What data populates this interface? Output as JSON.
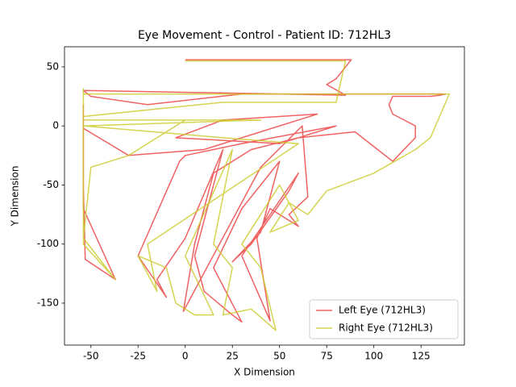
{
  "chart_data": {
    "type": "line",
    "title": "Eye Movement - Control - Patient ID: 712HL3",
    "x_label": "X Dimension",
    "y_label": "Y Dimension",
    "xlim": [
      -64,
      148
    ],
    "ylim": [
      -185.5,
      67
    ],
    "xticks": [
      -50,
      -25,
      0,
      25,
      50,
      75,
      100,
      125
    ],
    "yticks": [
      -150,
      -100,
      -50,
      0,
      50
    ],
    "grid": false,
    "legend": "lower right",
    "series": [
      {
        "name": "Left Eye (712HL3)",
        "color": "#ee3b3b",
        "x": [
          -54,
          -54,
          -53,
          -37,
          -54,
          -54,
          -30,
          10,
          40,
          70,
          20,
          -5,
          50,
          80,
          30,
          0,
          -3,
          -25,
          -10,
          -15,
          0,
          20,
          5,
          10,
          25,
          30,
          15,
          30,
          50,
          40,
          25,
          35,
          55,
          60,
          30,
          45,
          38,
          45,
          60,
          55,
          65,
          62,
          40,
          -1,
          5,
          15,
          35,
          60,
          90,
          110,
          122,
          122,
          110,
          108,
          110,
          130,
          135,
          138,
          100,
          30,
          -20,
          -50,
          -54,
          85,
          75,
          80,
          85,
          88,
          0
        ],
        "values": [
          18,
          -52,
          -113,
          -130,
          -70,
          -2,
          -25,
          -20,
          -5,
          10,
          5,
          -10,
          -15,
          0,
          -15,
          -25,
          -30,
          -110,
          -145,
          -130,
          -95,
          -20,
          -110,
          -140,
          -160,
          -166,
          -120,
          -70,
          -30,
          -90,
          -115,
          -100,
          -55,
          -40,
          -110,
          -165,
          -95,
          -70,
          -85,
          -75,
          -60,
          0,
          -35,
          -157,
          -100,
          -40,
          -20,
          -10,
          -5,
          -30,
          -10,
          0,
          10,
          18,
          25,
          25,
          26,
          27,
          27,
          27,
          18,
          25,
          30,
          26,
          35,
          40,
          50,
          56,
          56
        ]
      },
      {
        "name": "Right Eye (712HL3)",
        "color": "#c9c926",
        "x": [
          -54,
          -54,
          -37,
          -54,
          -50,
          -30,
          0,
          -54,
          40,
          -54,
          20,
          60,
          -20,
          -15,
          -25,
          -10,
          -5,
          5,
          15,
          0,
          25,
          15,
          25,
          20,
          35,
          48,
          40,
          30,
          50,
          60,
          45,
          55,
          65,
          75,
          100,
          122,
          130,
          140,
          100,
          -54,
          -54,
          20,
          80,
          85,
          0
        ],
        "values": [
          32,
          -100,
          -130,
          -95,
          -35,
          -25,
          5,
          5,
          5,
          0,
          -10,
          -15,
          -100,
          -140,
          -110,
          -120,
          -150,
          -160,
          -160,
          -110,
          -20,
          -100,
          -120,
          -160,
          -155,
          -173,
          -120,
          -100,
          -50,
          -80,
          -90,
          -65,
          -75,
          -55,
          -40,
          -20,
          -10,
          27,
          27,
          27,
          8,
          20,
          20,
          55,
          55
        ]
      }
    ]
  }
}
